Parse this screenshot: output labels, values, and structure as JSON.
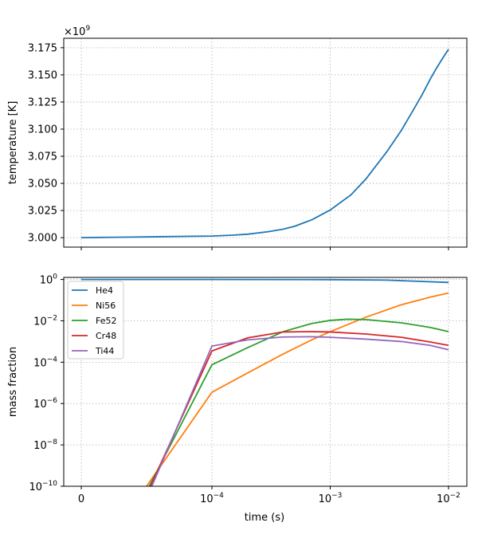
{
  "chart_data": [
    {
      "type": "line",
      "ylabel": "temperature [K]",
      "xlabel": "",
      "offset_label": "×10",
      "offset_exponent": "9",
      "x_ticks": [
        {
          "x": 0,
          "label": ""
        },
        {
          "x": 0.0001,
          "label": ""
        },
        {
          "x": 0.001,
          "label": ""
        },
        {
          "x": 0.01,
          "label": ""
        }
      ],
      "y_ticks": [
        {
          "y": 3.0,
          "label": "3.000"
        },
        {
          "y": 3.025,
          "label": "3.025"
        },
        {
          "y": 3.05,
          "label": "3.050"
        },
        {
          "y": 3.075,
          "label": "3.075"
        },
        {
          "y": 3.1,
          "label": "3.100"
        },
        {
          "y": 3.125,
          "label": "3.125"
        },
        {
          "y": 3.15,
          "label": "3.150"
        },
        {
          "y": 3.175,
          "label": "3.175"
        }
      ],
      "ylim": [
        2.9913,
        3.1837
      ],
      "grid": true,
      "series": [
        {
          "name": "temperature",
          "color": "#1f77b4",
          "points": [
            [
              0,
              3.0
            ],
            [
              2e-05,
              3.0003
            ],
            [
              4e-05,
              3.0006
            ],
            [
              6e-05,
              3.0009
            ],
            [
              8e-05,
              3.0012
            ],
            [
              0.0001,
              3.0015
            ],
            [
              0.00015,
              3.0023
            ],
            [
              0.0002,
              3.0032
            ],
            [
              0.0003,
              3.0055
            ],
            [
              0.0004,
              3.0078
            ],
            [
              0.0005,
              3.0105
            ],
            [
              0.0007,
              3.0165
            ],
            [
              0.001,
              3.0255
            ],
            [
              0.0015,
              3.0395
            ],
            [
              0.002,
              3.054
            ],
            [
              0.003,
              3.079
            ],
            [
              0.004,
              3.099
            ],
            [
              0.005,
              3.117
            ],
            [
              0.006,
              3.132
            ],
            [
              0.007,
              3.146
            ],
            [
              0.008,
              3.157
            ],
            [
              0.009,
              3.166
            ],
            [
              0.01,
              3.1735
            ]
          ]
        }
      ]
    },
    {
      "type": "line",
      "ylabel": "mass fraction",
      "xlabel": "time (s)",
      "yscale": "log",
      "legend_position": "upper-left",
      "x_ticks": [
        {
          "x": 0,
          "label": "0",
          "exp": ""
        },
        {
          "x": 0.0001,
          "label": "10",
          "exp": "−4"
        },
        {
          "x": 0.001,
          "label": "10",
          "exp": "−3"
        },
        {
          "x": 0.01,
          "label": "10",
          "exp": "−2"
        }
      ],
      "y_ticks": [
        {
          "y": 1,
          "label": "10",
          "exp": "0"
        },
        {
          "y": 0.01,
          "label": "10",
          "exp": "−2"
        },
        {
          "y": 0.0001,
          "label": "10",
          "exp": "−4"
        },
        {
          "y": 1e-06,
          "label": "10",
          "exp": "−6"
        },
        {
          "y": 1e-08,
          "label": "10",
          "exp": "−8"
        },
        {
          "y": 1e-10,
          "label": "10",
          "exp": "−10"
        }
      ],
      "ylim_log10": [
        -10,
        0.1
      ],
      "grid": true,
      "series": [
        {
          "name": "He4",
          "color": "#1f77b4",
          "points": [
            [
              0,
              1.0
            ],
            [
              0.0001,
              0.995
            ],
            [
              0.001,
              0.98
            ],
            [
              0.003,
              0.93
            ],
            [
              0.01,
              0.72
            ]
          ]
        },
        {
          "name": "Ni56",
          "color": "#ff7f0e",
          "points": [
            [
              5e-05,
              1e-10
            ],
            [
              0.0001,
              3.5e-06
            ],
            [
              0.0002,
              3e-05
            ],
            [
              0.0004,
              0.00025
            ],
            [
              0.0007,
              0.0012
            ],
            [
              0.001,
              0.003
            ],
            [
              0.002,
              0.015
            ],
            [
              0.004,
              0.06
            ],
            [
              0.007,
              0.14
            ],
            [
              0.01,
              0.22
            ]
          ]
        },
        {
          "name": "Fe52",
          "color": "#2ca02c",
          "points": [
            [
              5.2e-05,
              1e-10
            ],
            [
              0.0001,
              7.5e-05
            ],
            [
              0.0002,
              0.0005
            ],
            [
              0.0004,
              0.003
            ],
            [
              0.0007,
              0.0075
            ],
            [
              0.001,
              0.0105
            ],
            [
              0.0014,
              0.012
            ],
            [
              0.002,
              0.0115
            ],
            [
              0.004,
              0.008
            ],
            [
              0.007,
              0.0048
            ],
            [
              0.01,
              0.003
            ]
          ]
        },
        {
          "name": "Cr48",
          "color": "#d62728",
          "points": [
            [
              5.3e-05,
              1e-10
            ],
            [
              0.0001,
              0.00035
            ],
            [
              0.0002,
              0.0015
            ],
            [
              0.0004,
              0.0029
            ],
            [
              0.0007,
              0.003
            ],
            [
              0.001,
              0.0029
            ],
            [
              0.002,
              0.0023
            ],
            [
              0.004,
              0.0016
            ],
            [
              0.007,
              0.00095
            ],
            [
              0.01,
              0.00065
            ]
          ]
        },
        {
          "name": "Ti44",
          "color": "#9467bd",
          "points": [
            [
              5.4e-05,
              1e-10
            ],
            [
              0.0001,
              0.0006
            ],
            [
              0.0002,
              0.0012
            ],
            [
              0.0004,
              0.00165
            ],
            [
              0.0007,
              0.0017
            ],
            [
              0.001,
              0.0016
            ],
            [
              0.002,
              0.0013
            ],
            [
              0.004,
              0.001
            ],
            [
              0.007,
              0.00065
            ],
            [
              0.01,
              0.0004
            ]
          ]
        }
      ]
    }
  ]
}
